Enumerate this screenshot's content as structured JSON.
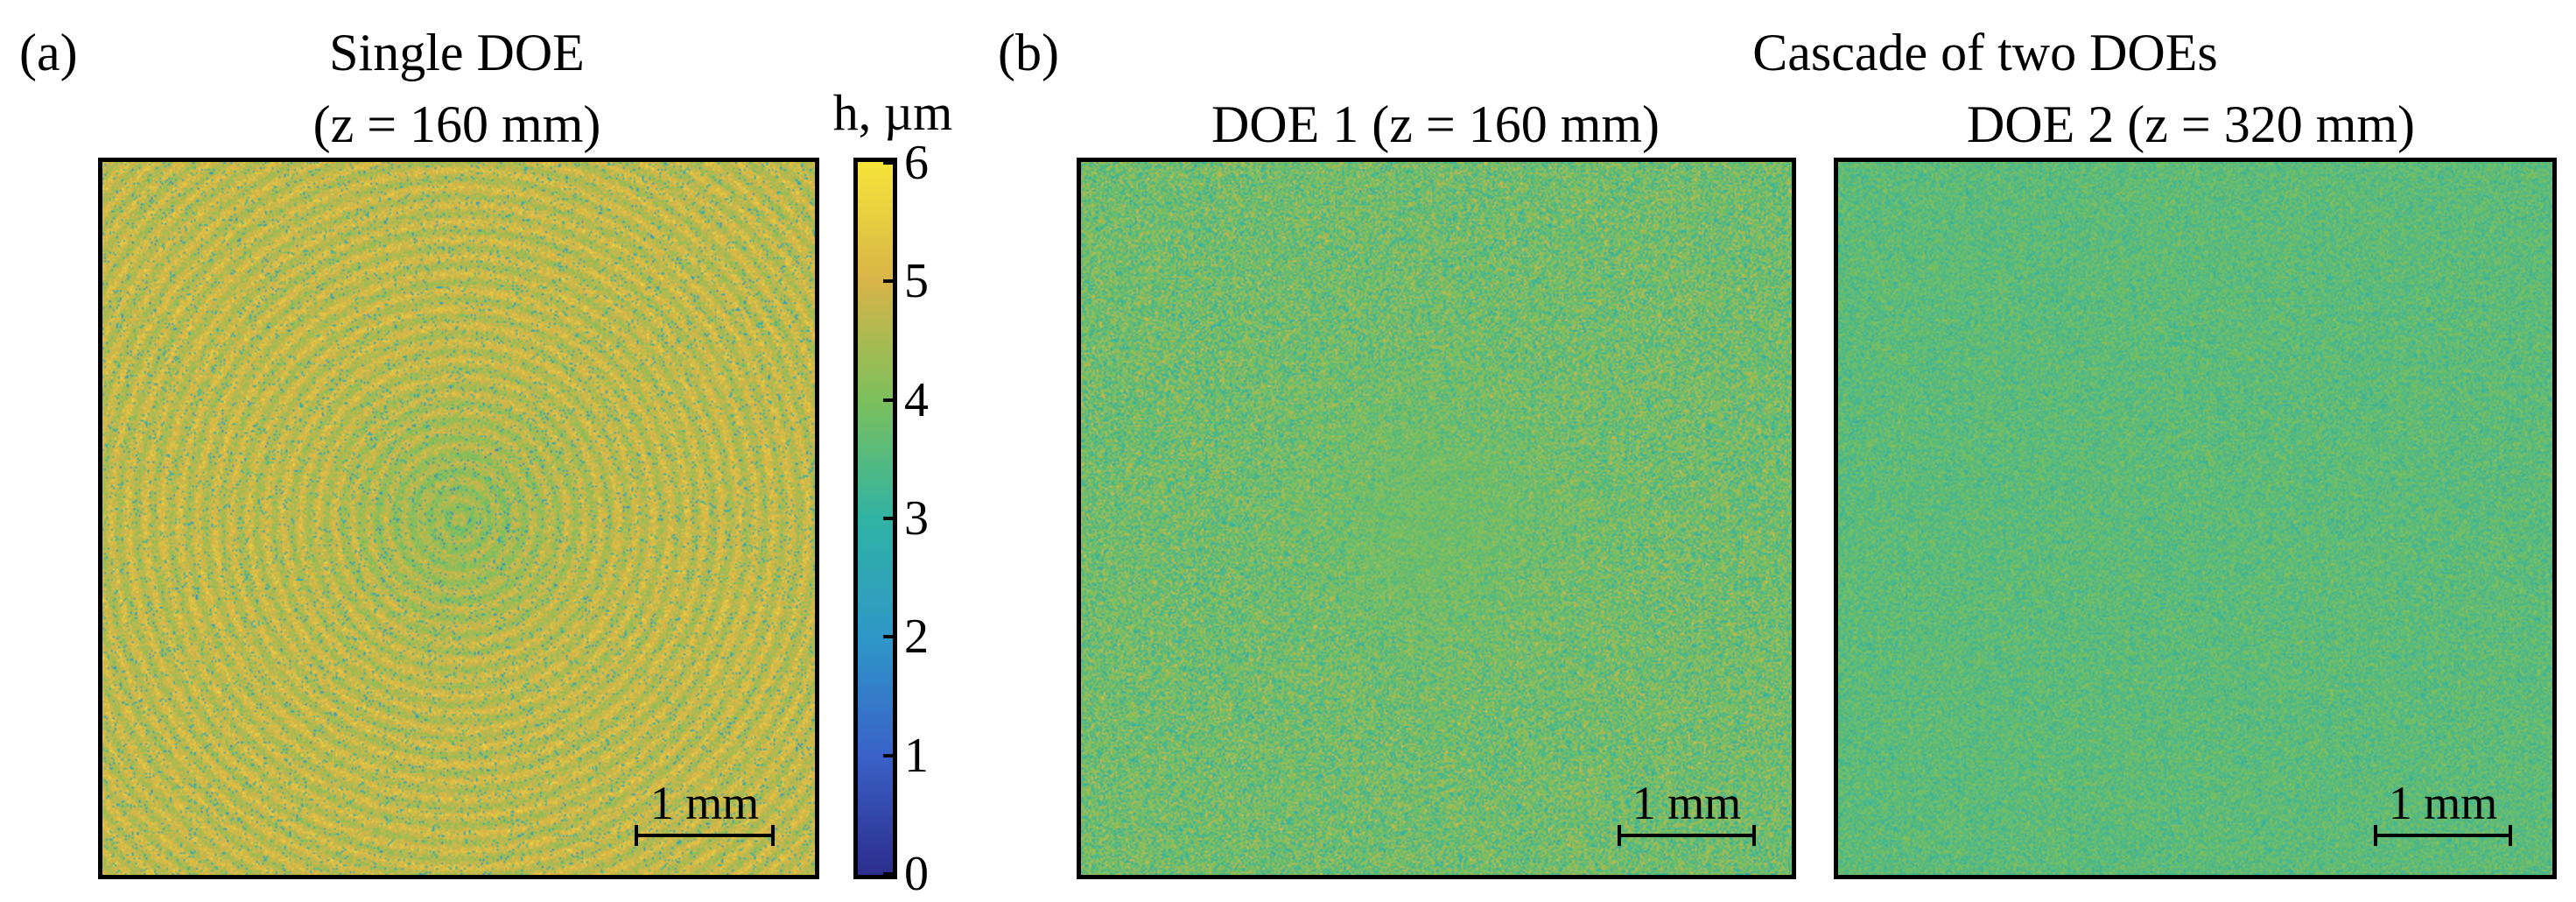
{
  "panel_a": {
    "label": "(a)",
    "title_line1": "Single DOE",
    "title_line2": "(z = 160 mm)",
    "scale_bar": "1 mm"
  },
  "panel_b": {
    "label": "(b)",
    "title": "Cascade of two DOEs",
    "doe1_title": "DOE 1 (z = 160 mm)",
    "doe2_title": "DOE 2 (z = 320 mm)",
    "scale_bar_1": "1 mm",
    "scale_bar_2": "1 mm"
  },
  "colorbar": {
    "title": "h, µm",
    "ticks": [
      "6",
      "5",
      "4",
      "3",
      "2",
      "1",
      "0"
    ],
    "min": 0,
    "max": 6,
    "colors": [
      "#2c2e8c",
      "#3a62c8",
      "#2e98c8",
      "#30b3a4",
      "#7cc05c",
      "#d8b448",
      "#f7e43a"
    ]
  }
}
